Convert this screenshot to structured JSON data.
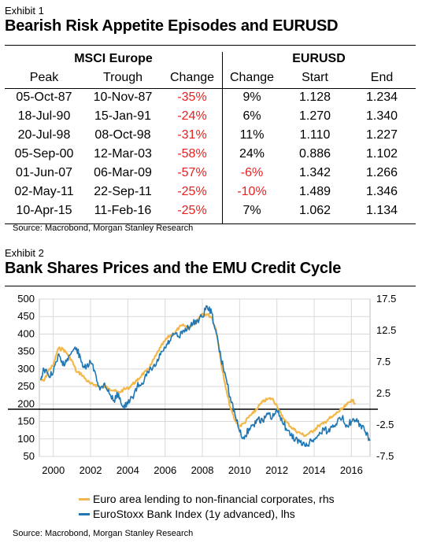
{
  "exhibit1": {
    "label": "Exhibit 1",
    "title": "Bearish Risk Appetite Episodes and EURUSD",
    "groups": {
      "left": "MSCI Europe",
      "right": "EURUSD"
    },
    "headers": [
      "Peak",
      "Trough",
      "Change",
      "Change",
      "Start",
      "End"
    ],
    "rows": [
      [
        "05-Oct-87",
        "10-Nov-87",
        "-35%",
        "9%",
        "1.128",
        "1.234"
      ],
      [
        "18-Jul-90",
        "15-Jan-91",
        "-24%",
        "6%",
        "1.270",
        "1.340"
      ],
      [
        "20-Jul-98",
        "08-Oct-98",
        "-31%",
        "11%",
        "1.110",
        "1.227"
      ],
      [
        "05-Sep-00",
        "12-Mar-03",
        "-58%",
        "24%",
        "0.886",
        "1.102"
      ],
      [
        "01-Jun-07",
        "06-Mar-09",
        "-57%",
        "-6%",
        "1.342",
        "1.266"
      ],
      [
        "02-May-11",
        "22-Sep-11",
        "-25%",
        "-10%",
        "1.489",
        "1.346"
      ],
      [
        "10-Apr-15",
        "11-Feb-16",
        "-25%",
        "7%",
        "1.062",
        "1.134"
      ]
    ],
    "source": "Source: Macrobond, Morgan Stanley Research"
  },
  "exhibit2": {
    "label": "Exhibit 2",
    "title": "Bank Shares Prices and the EMU Credit Cycle",
    "source": "Source: Macrobond, Morgan Stanley Research"
  },
  "colors": {
    "negative": "#e8201f",
    "bank": "#1f77b4",
    "lending": "#f2b84b"
  },
  "chart_data": {
    "type": "line",
    "left_axis": {
      "ylim": [
        50,
        500
      ],
      "ticks": [
        "500",
        "450",
        "400",
        "350",
        "300",
        "250",
        "200",
        "150",
        "100",
        "50"
      ]
    },
    "right_axis": {
      "ylim": [
        -7.5,
        17.5
      ],
      "ticks": [
        "17.5",
        "12.5",
        "7.5",
        "2.5",
        "-2.5",
        "-7.5"
      ]
    },
    "x_ticks": [
      "2000",
      "2002",
      "2004",
      "2006",
      "2008",
      "2010",
      "2012",
      "2014",
      "2016"
    ],
    "xlim": [
      1999.25,
      2017.0
    ],
    "grid": true,
    "reference_line_rhs": 0,
    "legend_position": "bottom",
    "series": [
      {
        "name": "Euro area lending to non-financial corporates, rhs",
        "axis": "right",
        "x": [
          1999.3,
          1999.5,
          1999.75,
          2000.0,
          2000.25,
          2000.5,
          2000.75,
          2001.0,
          2001.25,
          2001.5,
          2001.75,
          2002.0,
          2002.25,
          2002.5,
          2002.75,
          2003.0,
          2003.25,
          2003.5,
          2003.75,
          2004.0,
          2004.25,
          2004.5,
          2004.75,
          2005.0,
          2005.25,
          2005.5,
          2005.75,
          2006.0,
          2006.25,
          2006.5,
          2006.75,
          2007.0,
          2007.25,
          2007.5,
          2007.75,
          2008.0,
          2008.25,
          2008.5,
          2008.75,
          2009.0,
          2009.25,
          2009.5,
          2009.75,
          2010.0,
          2010.25,
          2010.5,
          2010.75,
          2011.0,
          2011.25,
          2011.5,
          2011.75,
          2012.0,
          2012.25,
          2012.5,
          2012.75,
          2013.0,
          2013.25,
          2013.5,
          2013.75,
          2014.0,
          2014.25,
          2014.5,
          2014.75,
          2015.0,
          2015.25,
          2015.5,
          2015.75,
          2016.0,
          2016.2
        ],
        "values": [
          4.7,
          4.5,
          6.2,
          7.0,
          9.6,
          9.6,
          8.8,
          7.7,
          5.9,
          5.6,
          4.7,
          4.0,
          3.9,
          3.5,
          3.6,
          3.3,
          3.0,
          2.6,
          3.1,
          3.3,
          4.0,
          4.5,
          5.5,
          6.0,
          7.1,
          8.5,
          9.8,
          10.9,
          11.7,
          12.0,
          13.0,
          13.3,
          13.0,
          13.5,
          14.3,
          15.2,
          15.1,
          14.6,
          12.5,
          7.5,
          3.4,
          0.3,
          -1.8,
          -2.7,
          -2.2,
          -1.2,
          -0.6,
          0.4,
          1.2,
          1.6,
          1.7,
          0.6,
          -1.0,
          -2.0,
          -2.8,
          -3.4,
          -3.8,
          -4.2,
          -3.8,
          -3.3,
          -2.6,
          -2.3,
          -1.6,
          -1.2,
          -0.5,
          0.0,
          0.7,
          1.5,
          1.0
        ]
      },
      {
        "name": "EuroStoxx Bank Index (1y advanced), lhs",
        "axis": "left",
        "x": [
          1999.3,
          1999.5,
          1999.75,
          2000.0,
          2000.25,
          2000.5,
          2000.75,
          2001.0,
          2001.25,
          2001.5,
          2001.75,
          2002.0,
          2002.25,
          2002.5,
          2002.75,
          2003.0,
          2003.25,
          2003.5,
          2003.75,
          2004.0,
          2004.25,
          2004.5,
          2004.75,
          2005.0,
          2005.25,
          2005.5,
          2005.75,
          2006.0,
          2006.25,
          2006.5,
          2006.75,
          2007.0,
          2007.25,
          2007.5,
          2007.75,
          2008.0,
          2008.25,
          2008.5,
          2008.75,
          2009.0,
          2009.25,
          2009.5,
          2009.75,
          2010.0,
          2010.25,
          2010.5,
          2010.75,
          2011.0,
          2011.25,
          2011.5,
          2011.75,
          2012.0,
          2012.25,
          2012.5,
          2012.75,
          2013.0,
          2013.25,
          2013.5,
          2013.75,
          2014.0,
          2014.25,
          2014.5,
          2014.75,
          2015.0,
          2015.25,
          2015.5,
          2015.75,
          2016.0,
          2016.25,
          2016.5,
          2016.75,
          2017.0
        ],
        "values": [
          270,
          300,
          280,
          290,
          340,
          310,
          330,
          350,
          360,
          320,
          300,
          320,
          290,
          240,
          260,
          230,
          210,
          230,
          190,
          200,
          220,
          250,
          260,
          280,
          300,
          310,
          340,
          360,
          380,
          400,
          390,
          410,
          420,
          430,
          440,
          450,
          480,
          460,
          400,
          330,
          280,
          220,
          170,
          120,
          100,
          130,
          140,
          160,
          150,
          170,
          160,
          180,
          160,
          130,
          110,
          100,
          90,
          80,
          90,
          100,
          110,
          130,
          120,
          140,
          150,
          160,
          140,
          150,
          150,
          140,
          120,
          95
        ]
      }
    ]
  }
}
